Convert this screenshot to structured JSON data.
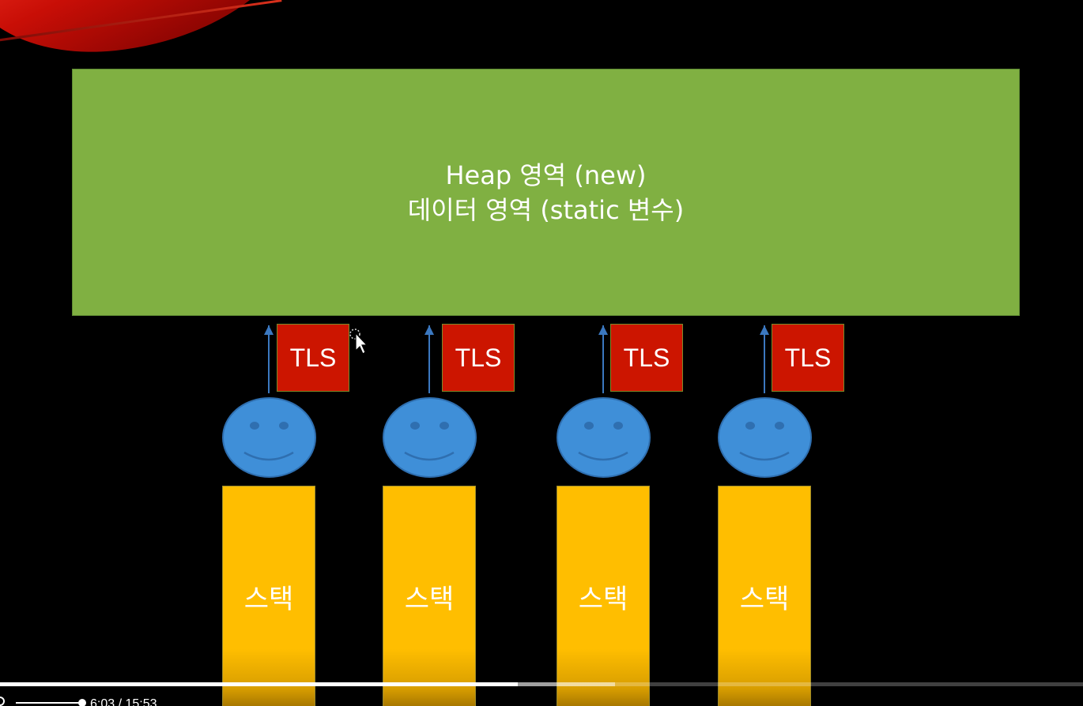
{
  "slide": {
    "heap_box": {
      "line1": "Heap 영역 (new)",
      "line2": "데이터 영역 (static 변수)"
    },
    "threads": [
      {
        "tls_label": "TLS",
        "stack_label": "스택"
      },
      {
        "tls_label": "TLS",
        "stack_label": "스택"
      },
      {
        "tls_label": "TLS",
        "stack_label": "스택"
      },
      {
        "tls_label": "TLS",
        "stack_label": "스택"
      }
    ],
    "colors": {
      "background": "#000000",
      "heap": "#80b042",
      "tls": "#cc1500",
      "face": "#3f8fd8",
      "stack": "#ffbe00",
      "arrow": "#3b78c0",
      "accent_swoosh": "#c80e06"
    }
  },
  "player": {
    "time_display": "6:03 / 15:53",
    "progress_fraction": 0.381,
    "volume_icon": "volume-icon",
    "volume_level": 1.0
  }
}
